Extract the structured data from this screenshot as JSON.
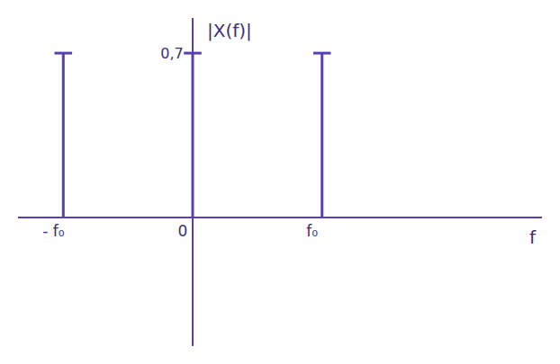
{
  "chart_data": {
    "type": "stem",
    "y_label": "|X(f)|",
    "x_label": "f",
    "x": [
      -1,
      0,
      1
    ],
    "values": [
      0.7,
      0.7,
      0.7
    ],
    "color": "#5a3fb0",
    "marker": "line-ew",
    "xlim": [
      -1.35,
      2.7
    ],
    "ylim": [
      -0.55,
      0.85
    ],
    "xticks": [
      {
        "value": -1,
        "label": "- f₀"
      },
      0,
      {
        "value": 1,
        "label": "f₀"
      }
    ],
    "yticks": [
      {
        "value": 0.7,
        "label": "0,7"
      }
    ],
    "grid": false
  }
}
